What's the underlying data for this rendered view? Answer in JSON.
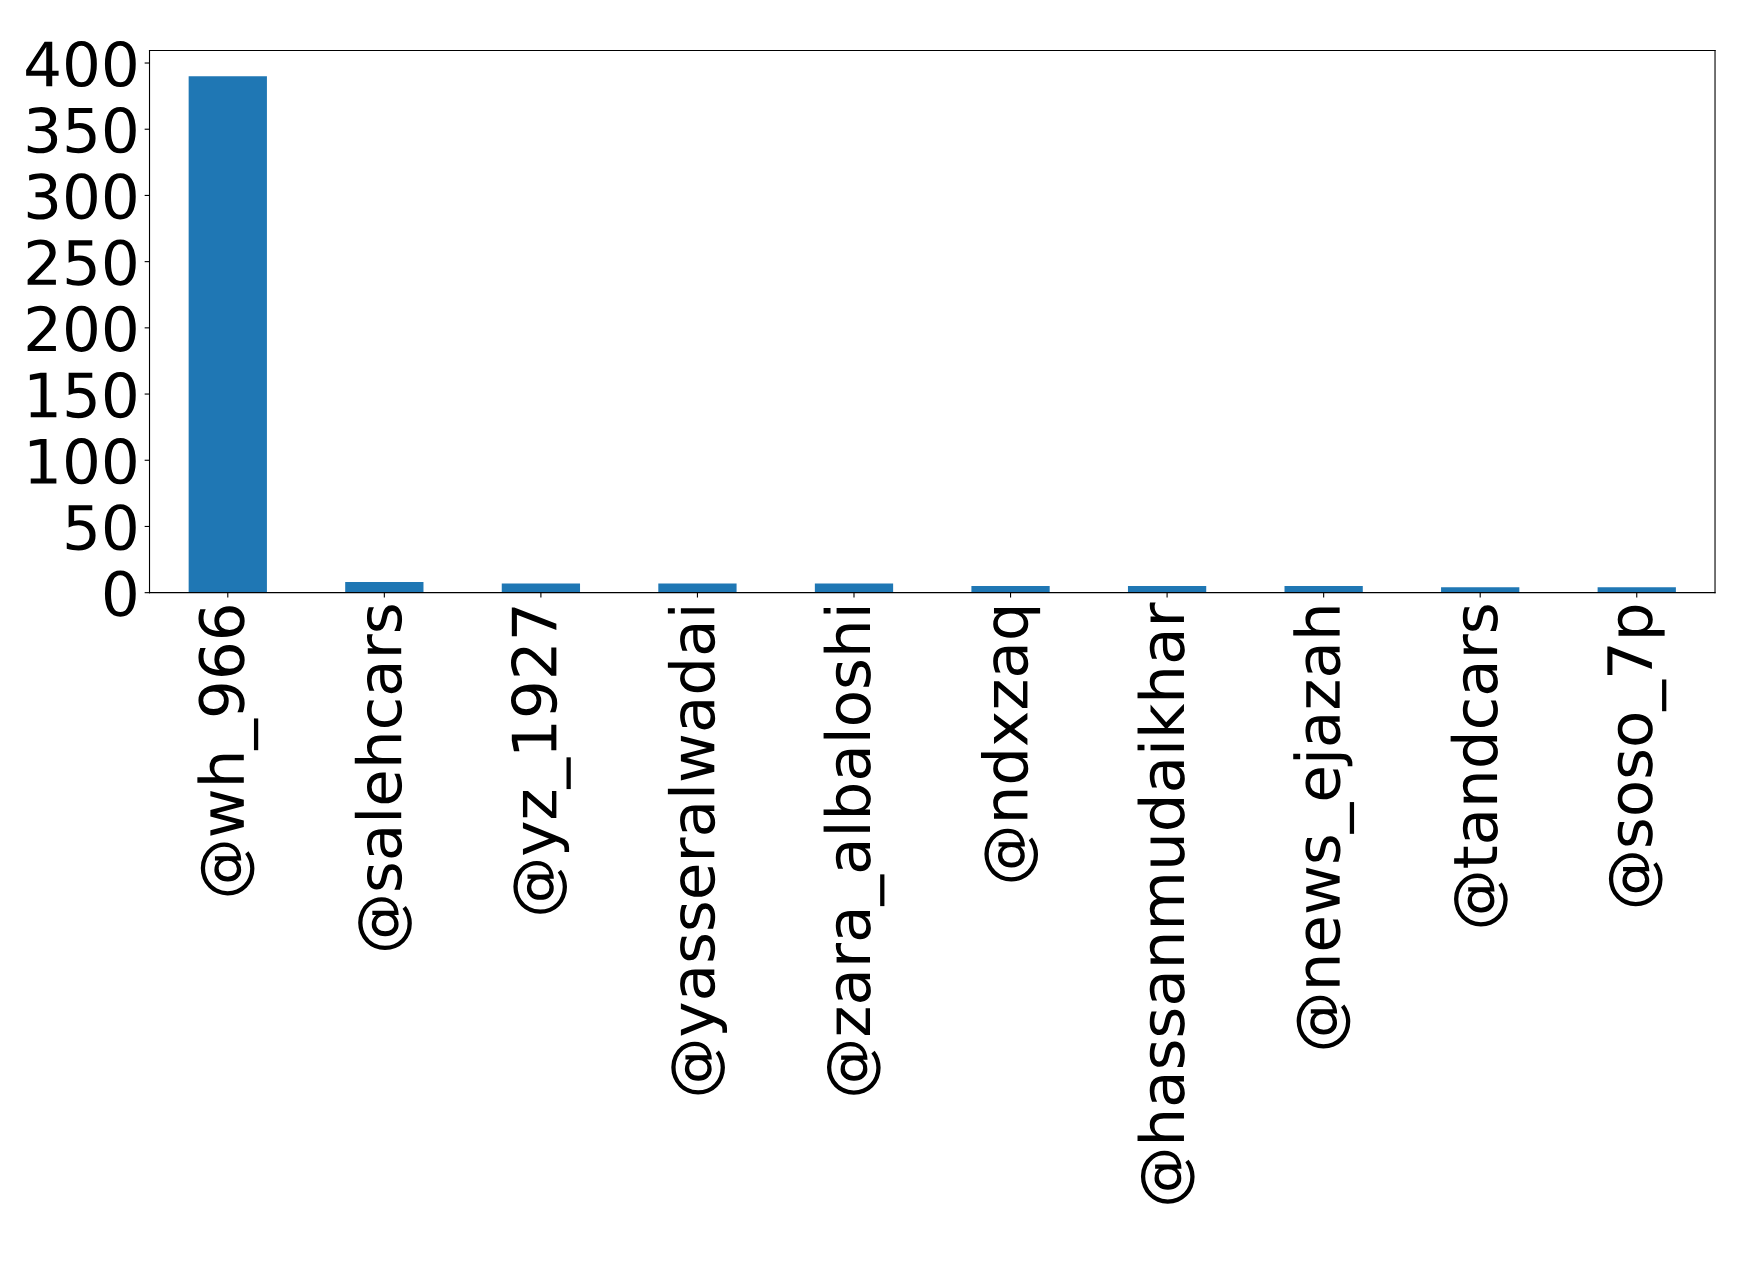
{
  "chart_data": {
    "type": "bar",
    "categories": [
      "@wh_966",
      "@salehcars",
      "@yz_1927",
      "@yasseralwadai",
      "@zara_albaloshi",
      "@ndxzaq",
      "@hassanmudaikhar",
      "@news_ejazah",
      "@tandcars",
      "@soso_7p"
    ],
    "values": [
      390,
      8,
      7,
      7,
      7,
      5,
      5,
      5,
      4,
      4
    ],
    "color": "#1f77b4",
    "ylim": [
      0,
      409.5
    ],
    "yticks": [
      0,
      50,
      100,
      150,
      200,
      250,
      300,
      350,
      400
    ],
    "grid": false
  }
}
